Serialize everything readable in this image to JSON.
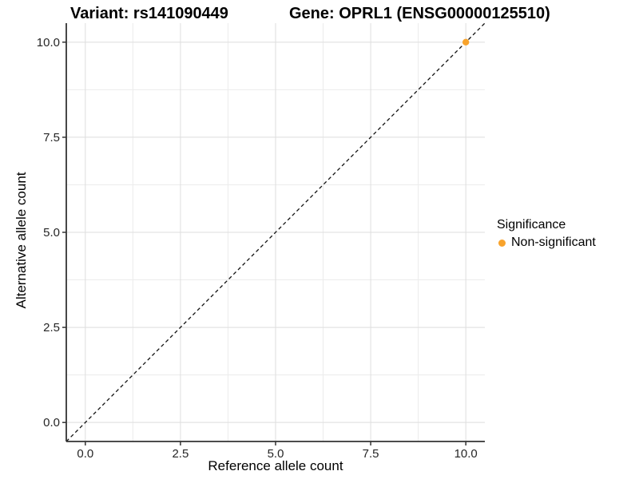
{
  "chart_data": {
    "type": "scatter",
    "titles": {
      "left": "Variant: rs141090449",
      "right": "Gene: OPRL1 (ENSG00000125510)"
    },
    "xlabel": "Reference allele count",
    "ylabel": "Alternative allele count",
    "xlim": [
      -0.5,
      10.5
    ],
    "ylim": [
      -0.5,
      10.5
    ],
    "x_ticks": [
      0.0,
      2.5,
      5.0,
      7.5,
      10.0
    ],
    "y_ticks": [
      0.0,
      2.5,
      5.0,
      7.5,
      10.0
    ],
    "x_tick_labels": [
      "0.0",
      "2.5",
      "5.0",
      "7.5",
      "10.0"
    ],
    "y_tick_labels": [
      "0.0",
      "2.5",
      "5.0",
      "7.5",
      "10.0"
    ],
    "minor_ticks_x": [
      1.25,
      3.75,
      6.25,
      8.75
    ],
    "minor_ticks_y": [
      1.25,
      3.75,
      6.25,
      8.75
    ],
    "grid": true,
    "reference_line": {
      "description": "identity line y = x",
      "from": [
        -0.5,
        -0.5
      ],
      "to": [
        10.5,
        10.5
      ],
      "style": "dashed",
      "color": "#111111"
    },
    "series": [
      {
        "name": "Non-significant",
        "color": "#F8A32C",
        "points": [
          {
            "x": 10,
            "y": 10
          }
        ]
      }
    ],
    "legend": {
      "title": "Significance",
      "position": "right",
      "items": [
        {
          "label": "Non-significant",
          "color": "#F8A32C"
        }
      ]
    },
    "colors": {
      "point": "#F8A32C",
      "grid_major": "#DEDEDE",
      "grid_minor": "#ECECEC",
      "axis_line": "#333333",
      "tick_mark": "#333333",
      "tick_label": "#262626",
      "background": "#FFFFFF"
    }
  }
}
